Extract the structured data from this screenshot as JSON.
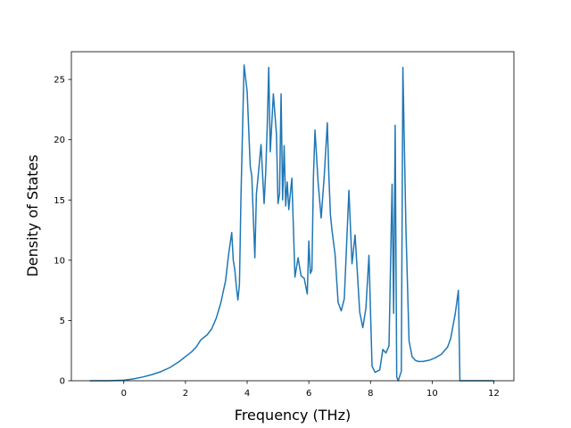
{
  "chart_data": {
    "type": "line",
    "title": "",
    "xlabel": "Frequency (THz)",
    "ylabel": "Density of States",
    "xlim": [
      -1.7,
      12.65
    ],
    "ylim": [
      0,
      27.3
    ],
    "xticks": [
      0,
      2,
      4,
      6,
      8,
      10,
      12
    ],
    "yticks": [
      0,
      5,
      10,
      15,
      20,
      25
    ],
    "grid": false,
    "legend": "none",
    "colors": {
      "line": "#1f77b4",
      "axes": "#000000",
      "background": "#ffffff"
    },
    "series": [
      {
        "x": [
          -1.1,
          -0.5,
          0.0,
          0.3,
          0.6,
          0.9,
          1.2,
          1.5,
          1.8,
          2.0,
          2.2,
          2.35,
          2.5,
          2.7,
          2.85,
          3.0,
          3.15,
          3.3,
          3.4,
          3.5,
          3.55,
          3.6,
          3.65,
          3.7,
          3.75,
          3.8,
          3.9,
          4.0,
          4.1,
          4.15,
          4.25,
          4.3,
          4.35,
          4.45,
          4.55,
          4.6,
          4.65,
          4.7,
          4.75,
          4.85,
          4.95,
          5.0,
          5.05,
          5.1,
          5.15,
          5.2,
          5.25,
          5.3,
          5.35,
          5.45,
          5.55,
          5.65,
          5.75,
          5.85,
          5.95,
          6.0,
          6.05,
          6.1,
          6.15,
          6.2,
          6.3,
          6.4,
          6.5,
          6.6,
          6.65,
          6.7,
          6.75,
          6.85,
          6.95,
          7.05,
          7.15,
          7.3,
          7.4,
          7.5,
          7.65,
          7.75,
          7.85,
          7.95,
          8.05,
          8.15,
          8.3,
          8.4,
          8.5,
          8.6,
          8.7,
          8.75,
          8.8,
          8.85,
          8.9,
          9.0,
          9.05,
          9.15,
          9.25,
          9.35,
          9.45,
          9.55,
          9.7,
          9.9,
          10.1,
          10.3,
          10.5,
          10.6,
          10.75,
          10.85,
          10.9,
          10.95,
          11.3,
          12.0
        ],
        "y": [
          0,
          0,
          0.05,
          0.15,
          0.3,
          0.5,
          0.75,
          1.1,
          1.6,
          2.0,
          2.4,
          2.8,
          3.4,
          3.8,
          4.3,
          5.2,
          6.5,
          8.3,
          10.5,
          12.3,
          10.0,
          9.2,
          7.8,
          6.7,
          8.0,
          15.3,
          26.2,
          24.0,
          17.8,
          17.0,
          10.2,
          15.5,
          16.8,
          19.6,
          14.7,
          17.2,
          21.0,
          26.0,
          19.0,
          23.8,
          20.5,
          14.7,
          15.5,
          23.8,
          15.0,
          19.5,
          14.5,
          16.5,
          14.2,
          16.8,
          8.6,
          10.2,
          8.7,
          8.5,
          7.2,
          11.6,
          8.9,
          9.2,
          17.0,
          20.8,
          16.5,
          13.5,
          17.0,
          21.4,
          17.0,
          13.8,
          12.5,
          10.5,
          6.5,
          5.8,
          6.8,
          15.8,
          9.7,
          12.1,
          5.7,
          4.4,
          6.0,
          10.4,
          1.2,
          0.7,
          0.9,
          2.6,
          2.3,
          2.9,
          16.3,
          5.6,
          21.2,
          0.3,
          0.0,
          0.8,
          26.0,
          12.5,
          3.3,
          2.0,
          1.7,
          1.6,
          1.6,
          1.7,
          1.9,
          2.2,
          2.8,
          3.5,
          5.6,
          7.5,
          0.0,
          0.0,
          0.0,
          0.0
        ]
      }
    ]
  }
}
